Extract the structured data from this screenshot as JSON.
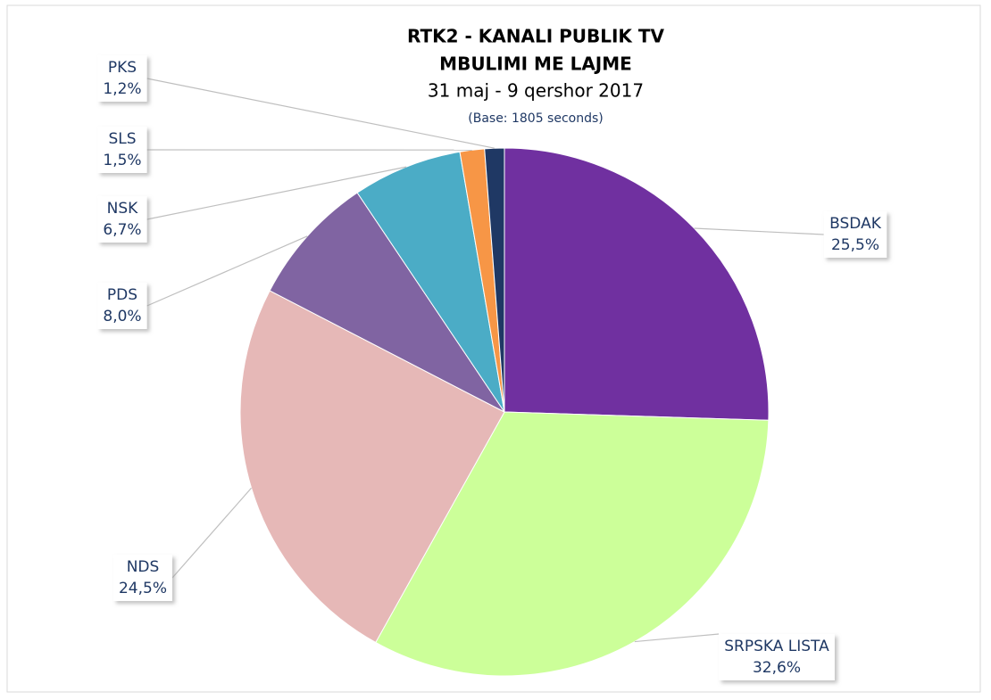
{
  "chart_data": {
    "type": "pie",
    "title": "RTK2 - KANALI PUBLIK TV",
    "subtitle": "MBULIMI ME LAJME",
    "date": "31 maj - 9 qershor 2017",
    "note": "(Base: 1805 seconds)",
    "categories": [
      "BSDAK",
      "SRPSKA LISTA",
      "NDS",
      "PDS",
      "NSK",
      "SLS",
      "PKS"
    ],
    "values": [
      25.5,
      32.6,
      24.5,
      8.0,
      6.7,
      1.5,
      1.2
    ],
    "value_labels": [
      "25,5%",
      "32,6%",
      "24,5%",
      "8,0%",
      "6,7%",
      "1,5%",
      "1,2%"
    ],
    "colors": [
      "#7030a0",
      "#ccff99",
      "#e6b8b7",
      "#8064a2",
      "#4bacc6",
      "#f79646",
      "#1f3864"
    ]
  }
}
